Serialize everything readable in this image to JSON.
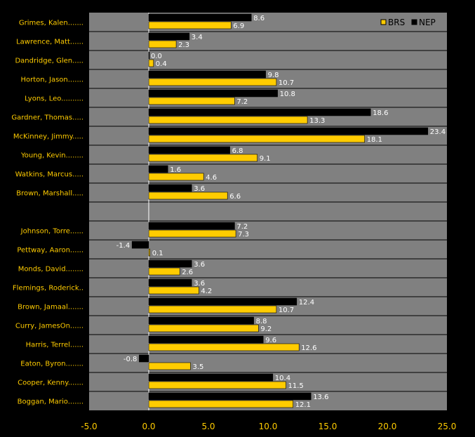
{
  "chart_data": {
    "type": "bar",
    "orientation": "horizontal",
    "categories": [
      "Grimes, Kalen.......",
      "Lawrence, Matt......",
      "Dandridge, Glen.....",
      "Horton, Jason.......",
      "Lyons, Leo..........",
      "Gardner, Thomas.....",
      "McKinney, Jimmy.....",
      "Young, Kevin........",
      "Watkins, Marcus.....",
      "Brown, Marshall.....",
      "",
      "Johnson, Torre......",
      "Pettway, Aaron......",
      "Monds, David........",
      "Flemings, Roderick..",
      "Brown, Jamaal.......",
      "Curry, JamesOn......",
      "Harris, Terrel......",
      "Eaton, Byron........",
      "Cooper, Kenny.......",
      "Boggan, Mario......."
    ],
    "series": [
      {
        "name": "NEP",
        "color": "#000000",
        "values": [
          8.6,
          3.4,
          0.0,
          9.8,
          10.8,
          18.6,
          23.4,
          6.8,
          1.6,
          3.6,
          null,
          7.2,
          -1.4,
          3.6,
          3.6,
          12.4,
          8.8,
          9.6,
          -0.8,
          10.4,
          13.6
        ],
        "labels": [
          "8.6",
          "3.4",
          "0.0",
          "9.8",
          "10.8",
          "18.6",
          "23.4",
          "6.8",
          "1.6",
          "3.6",
          null,
          "7.2",
          "-1.4",
          "3.6",
          "3.6",
          "12.4",
          "8.8",
          "9.6",
          "-0.8",
          "10.4",
          "13.6"
        ]
      },
      {
        "name": "BRS",
        "color": "#ffcc00",
        "values": [
          6.9,
          2.3,
          0.4,
          10.7,
          7.2,
          13.3,
          18.1,
          9.1,
          4.6,
          6.6,
          null,
          7.3,
          0.1,
          2.6,
          4.2,
          10.7,
          9.2,
          12.6,
          3.5,
          11.5,
          12.1
        ],
        "labels": [
          "6.9",
          "2.3",
          "0.4",
          "10.7",
          "7.2",
          "13.3",
          "18.1",
          "9.1",
          "4.6",
          "6.6",
          null,
          "7.3",
          "0.1",
          "2.6",
          "4.2",
          "10.7",
          "9.2",
          "12.6",
          "3.5",
          "11.5",
          "12.1"
        ]
      }
    ],
    "legend_order": [
      "BRS",
      "NEP"
    ],
    "xlim": [
      -5,
      25
    ],
    "xticks": [
      -5,
      0,
      5,
      10,
      15,
      20,
      25
    ],
    "xtick_labels": [
      "-5.0",
      "0.0",
      "5.0",
      "10.0",
      "15.0",
      "20.0",
      "25.0"
    ],
    "title": "",
    "xlabel": "",
    "ylabel": "",
    "grid": true,
    "legend_position": "top-right",
    "colors": {
      "plot_background": "#808080",
      "page_background": "#000000",
      "gridline": "#000000",
      "zero_line": "#ffffff",
      "category_text": "#ffcc00",
      "tick_text": "#ffcc00",
      "value_text": "#ffffff",
      "legend_text": "#000000"
    }
  }
}
